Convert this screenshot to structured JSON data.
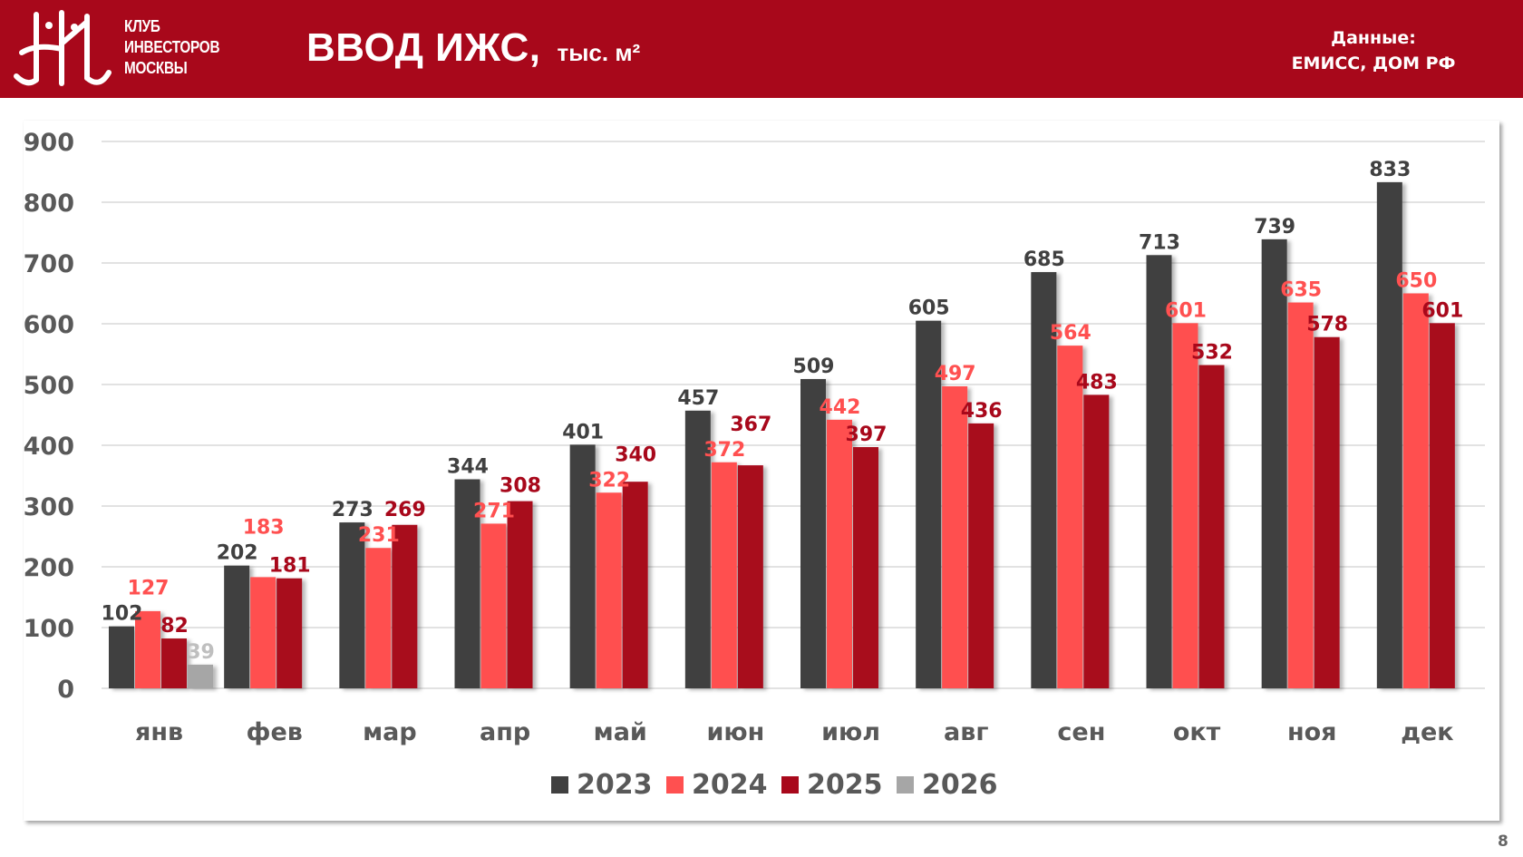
{
  "header": {
    "logo_lines": [
      "КЛУБ",
      "ИНВЕСТОРОВ",
      "МОСКВЫ"
    ],
    "title": "ВВОД ИЖС,",
    "unit": "тыс. м²",
    "source_label": "Данные:",
    "source_value": "ЕМИСС, ДОМ РФ"
  },
  "page_number": "8",
  "colors": {
    "header_bg": "#a8081b",
    "s2023": "#404040",
    "s2024": "#ff5050",
    "s2025": "#a8081b",
    "s2026": "#a6a6a6"
  },
  "chart_data": {
    "type": "bar",
    "title": "ВВОД ИЖС, тыс. м²",
    "xlabel": "",
    "ylabel": "",
    "ylim": [
      0,
      900
    ],
    "yticks": [
      0,
      100,
      200,
      300,
      400,
      500,
      600,
      700,
      800,
      900
    ],
    "grid": true,
    "legend_position": "bottom",
    "categories": [
      "янв",
      "фев",
      "мар",
      "апр",
      "май",
      "июн",
      "июл",
      "авг",
      "сен",
      "окт",
      "ноя",
      "дек"
    ],
    "series": [
      {
        "name": "2023",
        "color": "#404040",
        "label_color": "#404040",
        "values": [
          102,
          202,
          273,
          344,
          401,
          457,
          509,
          605,
          685,
          713,
          739,
          833
        ]
      },
      {
        "name": "2024",
        "color": "#ff5050",
        "label_color": "#ff5050",
        "values": [
          127,
          183,
          231,
          271,
          322,
          372,
          442,
          497,
          564,
          601,
          635,
          650
        ]
      },
      {
        "name": "2025",
        "color": "#a8081b",
        "label_color": "#a8081b",
        "values": [
          82,
          181,
          269,
          308,
          340,
          367,
          397,
          436,
          483,
          532,
          578,
          601
        ]
      },
      {
        "name": "2026",
        "color": "#a6a6a6",
        "label_color": "#bfbfbf",
        "values": [
          39,
          null,
          null,
          null,
          null,
          null,
          null,
          null,
          null,
          null,
          null,
          null
        ]
      }
    ]
  }
}
